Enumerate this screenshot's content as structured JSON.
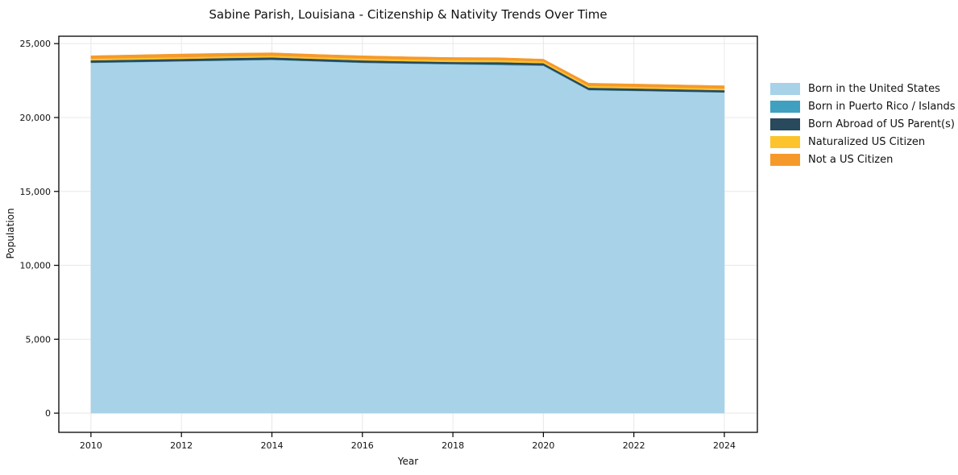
{
  "figure": {
    "title": "Sabine Parish, Louisiana - Citizenship & Nativity Trends Over Time",
    "xlabel": "Year",
    "ylabel": "Population"
  },
  "legend": {
    "position": "right",
    "items": [
      {
        "label": "Born in the United States",
        "color": "#a8d2e8"
      },
      {
        "label": "Born in Puerto Rico / Islands",
        "color": "#3fa0c0"
      },
      {
        "label": "Born Abroad of US Parent(s)",
        "color": "#29495c"
      },
      {
        "label": "Naturalized US Citizen",
        "color": "#fcc32d"
      },
      {
        "label": "Not a US Citizen",
        "color": "#f6992b"
      }
    ]
  },
  "chart_data": {
    "type": "area",
    "stacked": true,
    "title": "Sabine Parish, Louisiana - Citizenship & Nativity Trends Over Time",
    "xlabel": "Year",
    "ylabel": "Population",
    "grid": true,
    "legend_position": "right",
    "x": [
      2010,
      2011,
      2012,
      2013,
      2014,
      2015,
      2016,
      2017,
      2018,
      2019,
      2020,
      2021,
      2022,
      2023,
      2024
    ],
    "series": [
      {
        "name": "Born in the United States",
        "color": "#a8d2e8",
        "values": [
          23700,
          23750,
          23800,
          23850,
          23900,
          23800,
          23700,
          23650,
          23600,
          23550,
          23500,
          21850,
          21800,
          21750,
          21700
        ]
      },
      {
        "name": "Born in Puerto Rico / Islands",
        "color": "#3fa0c0",
        "values": [
          20,
          20,
          20,
          20,
          20,
          20,
          20,
          20,
          30,
          50,
          40,
          20,
          20,
          15,
          10
        ]
      },
      {
        "name": "Born Abroad of US Parent(s)",
        "color": "#29495c",
        "values": [
          150,
          150,
          150,
          160,
          150,
          150,
          150,
          140,
          130,
          150,
          140,
          150,
          150,
          145,
          140
        ]
      },
      {
        "name": "Naturalized US Citizen",
        "color": "#fcc32d",
        "values": [
          120,
          120,
          120,
          120,
          120,
          120,
          130,
          130,
          140,
          140,
          120,
          125,
          120,
          120,
          120
        ]
      },
      {
        "name": "Not a US Citizen",
        "color": "#f6992b",
        "values": [
          190,
          200,
          210,
          200,
          190,
          180,
          180,
          170,
          160,
          160,
          150,
          180,
          180,
          180,
          180
        ]
      }
    ],
    "xticks": [
      2010,
      2012,
      2014,
      2016,
      2018,
      2020,
      2022,
      2024
    ],
    "xtick_labels": [
      "2010",
      "2012",
      "2014",
      "2016",
      "2018",
      "2020",
      "2022",
      "2024"
    ],
    "yticks": [
      0,
      5000,
      10000,
      15000,
      20000,
      25000
    ],
    "ytick_labels": [
      "0",
      "5,000",
      "10,000",
      "15,000",
      "20,000",
      "25,000"
    ],
    "xlim": [
      2009.29,
      2024.73
    ],
    "ylim": [
      -1300,
      25500
    ],
    "grid_color": "#e8e8e8",
    "spine_color": "#000000"
  }
}
